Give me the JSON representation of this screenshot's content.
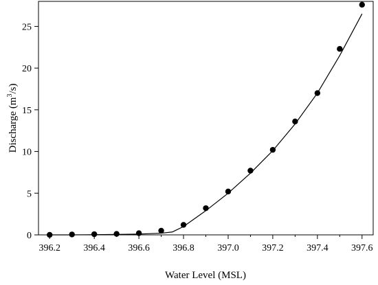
{
  "chart_data": {
    "type": "scatter",
    "xlabel": "Water Level (MSL)",
    "ylabel_prefix": "Discharge (m",
    "ylabel_sup": "3",
    "ylabel_suffix": "/s)",
    "xlim": [
      396.15,
      397.65
    ],
    "ylim": [
      0,
      28
    ],
    "x_ticks": [
      396.2,
      396.4,
      396.6,
      396.8,
      397.0,
      397.2,
      397.4,
      397.6
    ],
    "x_tick_labels": [
      "396.2",
      "396.4",
      "396.6",
      "396.8",
      "397.0",
      "397.2",
      "397.4",
      "397.6"
    ],
    "x_minor_ticks": [
      396.3,
      396.5,
      396.7,
      396.9,
      397.1,
      397.3,
      397.5
    ],
    "y_ticks": [
      0,
      5,
      10,
      15,
      20,
      25
    ],
    "y_tick_labels": [
      "0",
      "5",
      "10",
      "15",
      "20",
      "25"
    ],
    "grid": false,
    "series": [
      {
        "marker": "filled-circle",
        "color": "#000000",
        "x": [
          396.2,
          396.3,
          396.4,
          396.5,
          396.6,
          396.7,
          396.8,
          396.9,
          397.0,
          397.1,
          397.2,
          397.3,
          397.4,
          397.5,
          397.6
        ],
        "y": [
          0.0,
          0.05,
          0.08,
          0.12,
          0.2,
          0.5,
          1.2,
          3.2,
          5.2,
          7.7,
          10.2,
          13.6,
          17.0,
          22.3,
          27.6
        ]
      }
    ],
    "fit_curve": {
      "color": "#000000",
      "x": [
        396.2,
        396.3,
        396.4,
        396.5,
        396.6,
        396.7,
        396.75,
        396.8,
        396.9,
        397.0,
        397.1,
        397.2,
        397.3,
        397.4,
        397.5,
        397.6
      ],
      "y": [
        0.0,
        0.0,
        0.02,
        0.05,
        0.1,
        0.2,
        0.35,
        1.0,
        2.9,
        5.0,
        7.4,
        10.1,
        13.3,
        17.0,
        21.5,
        26.5
      ]
    }
  }
}
